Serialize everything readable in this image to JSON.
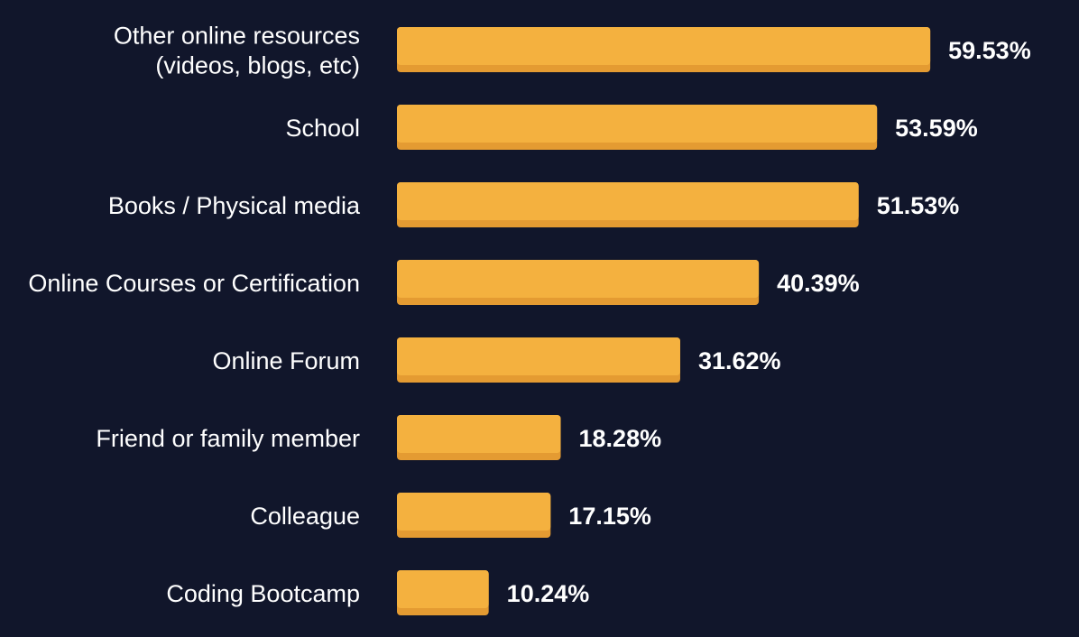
{
  "chart_data": {
    "type": "bar",
    "orientation": "horizontal",
    "categories": [
      "Other online resources (videos, blogs, etc)",
      "School",
      "Books / Physical media",
      "Online Courses or Certification",
      "Online Forum",
      "Friend or family member",
      "Colleague",
      "Coding Bootcamp"
    ],
    "category_lines": [
      [
        "Other online resources",
        "(videos, blogs, etc)"
      ],
      [
        "School"
      ],
      [
        "Books / Physical media"
      ],
      [
        "Online Courses or Certification"
      ],
      [
        "Online Forum"
      ],
      [
        "Friend or family member"
      ],
      [
        "Colleague"
      ],
      [
        "Coding Bootcamp"
      ]
    ],
    "values": [
      59.53,
      53.59,
      51.53,
      40.39,
      31.62,
      18.28,
      17.15,
      10.24
    ],
    "value_labels": [
      "59.53%",
      "53.59%",
      "51.53%",
      "40.39%",
      "31.62%",
      "18.28%",
      "17.15%",
      "10.24%"
    ],
    "xlim": [
      0,
      100
    ],
    "grid": false,
    "legend": "none",
    "colors": {
      "background": "#11162b",
      "bar": "#f4b13f",
      "bar_shadow": "#e49b32",
      "text": "#ffffff"
    }
  }
}
